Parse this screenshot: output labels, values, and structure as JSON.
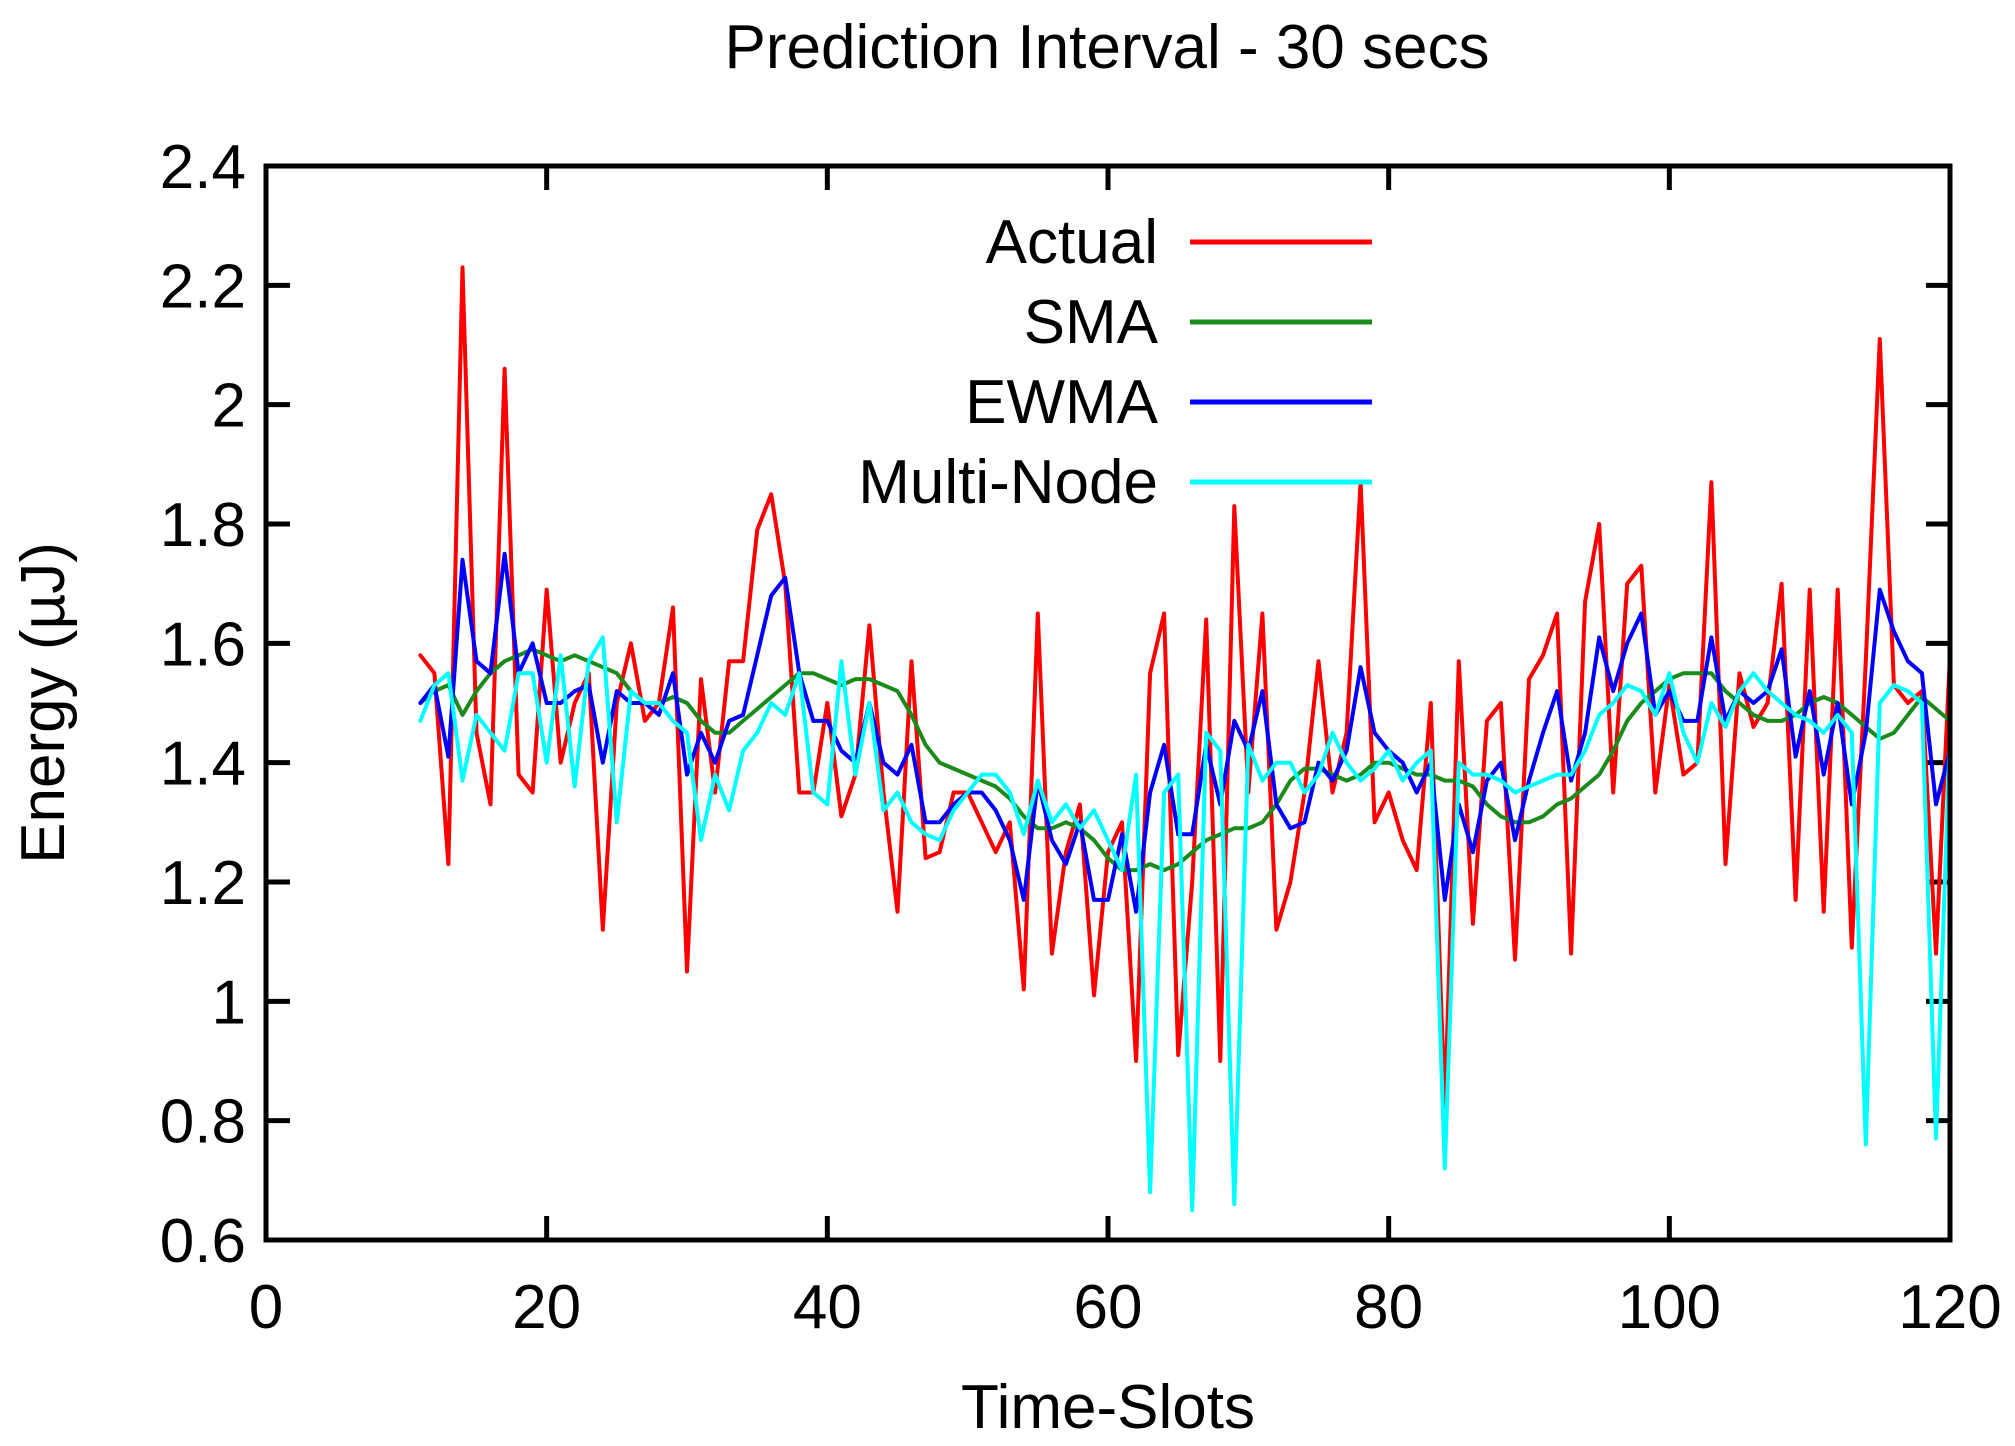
{
  "chart_data": {
    "type": "line",
    "title": "Prediction Interval - 30 secs",
    "xlabel": "Time-Slots",
    "ylabel": "Energy (µJ)",
    "xlim": [
      0,
      120
    ],
    "ylim": [
      0.6,
      2.4
    ],
    "x_ticks": [
      0,
      20,
      40,
      60,
      80,
      100,
      120
    ],
    "y_ticks": [
      0.6,
      0.8,
      1,
      1.2,
      1.4,
      1.6,
      1.8,
      2,
      2.2,
      2.4
    ],
    "y_tick_labels": [
      "0.6",
      "0.8",
      "1",
      "1.2",
      "1.4",
      "1.6",
      "1.8",
      "2",
      "2.2",
      "2.4"
    ],
    "legend_position": "top-center",
    "x": [
      11,
      12,
      13,
      14,
      15,
      16,
      17,
      18,
      19,
      20,
      21,
      22,
      23,
      24,
      25,
      26,
      27,
      28,
      29,
      30,
      31,
      32,
      33,
      34,
      35,
      36,
      37,
      38,
      39,
      40,
      41,
      42,
      43,
      44,
      45,
      46,
      47,
      48,
      49,
      50,
      51,
      52,
      53,
      54,
      55,
      56,
      57,
      58,
      59,
      60,
      61,
      62,
      63,
      64,
      65,
      66,
      67,
      68,
      69,
      70,
      71,
      72,
      73,
      74,
      75,
      76,
      77,
      78,
      79,
      80,
      81,
      82,
      83,
      84,
      85,
      86,
      87,
      88,
      89,
      90,
      91,
      92,
      93,
      94,
      95,
      96,
      97,
      98,
      99,
      100,
      101,
      102,
      103,
      104,
      105,
      106,
      107,
      108,
      109,
      110,
      111,
      112,
      113,
      114,
      115,
      116,
      117,
      118,
      119,
      120
    ],
    "series": [
      {
        "name": "Actual",
        "color": "#ff0000",
        "values": [
          1.58,
          1.55,
          1.23,
          2.23,
          1.45,
          1.33,
          2.06,
          1.38,
          1.35,
          1.69,
          1.4,
          1.5,
          1.55,
          1.12,
          1.5,
          1.6,
          1.47,
          1.5,
          1.66,
          1.05,
          1.54,
          1.35,
          1.57,
          1.57,
          1.79,
          1.85,
          1.7,
          1.35,
          1.35,
          1.5,
          1.31,
          1.38,
          1.63,
          1.35,
          1.15,
          1.57,
          1.24,
          1.25,
          1.35,
          1.35,
          1.3,
          1.25,
          1.3,
          1.02,
          1.65,
          1.08,
          1.25,
          1.33,
          1.01,
          1.25,
          1.3,
          0.9,
          1.55,
          1.65,
          0.91,
          1.2,
          1.64,
          0.9,
          1.83,
          1.35,
          1.65,
          1.12,
          1.2,
          1.35,
          1.57,
          1.35,
          1.45,
          1.87,
          1.3,
          1.35,
          1.27,
          1.22,
          1.5,
          0.82,
          1.57,
          1.13,
          1.47,
          1.5,
          1.07,
          1.54,
          1.58,
          1.65,
          1.08,
          1.67,
          1.8,
          1.35,
          1.7,
          1.73,
          1.35,
          1.53,
          1.38,
          1.4,
          1.87,
          1.23,
          1.55,
          1.46,
          1.5,
          1.7,
          1.17,
          1.69,
          1.15,
          1.69,
          1.09,
          1.57,
          2.11,
          1.53,
          1.5,
          1.52,
          1.08,
          1.58
        ]
      },
      {
        "name": "SMA",
        "color": "#1a8a1a",
        "values": [
          1.5,
          1.52,
          1.53,
          1.48,
          1.52,
          1.55,
          1.57,
          1.58,
          1.59,
          1.58,
          1.57,
          1.58,
          1.57,
          1.56,
          1.55,
          1.52,
          1.5,
          1.5,
          1.51,
          1.5,
          1.47,
          1.45,
          1.45,
          1.47,
          1.49,
          1.51,
          1.53,
          1.55,
          1.55,
          1.54,
          1.53,
          1.54,
          1.54,
          1.53,
          1.52,
          1.48,
          1.43,
          1.4,
          1.39,
          1.38,
          1.37,
          1.36,
          1.34,
          1.31,
          1.29,
          1.29,
          1.3,
          1.29,
          1.27,
          1.24,
          1.22,
          1.22,
          1.23,
          1.22,
          1.23,
          1.25,
          1.27,
          1.28,
          1.29,
          1.29,
          1.3,
          1.33,
          1.37,
          1.39,
          1.39,
          1.38,
          1.37,
          1.38,
          1.4,
          1.4,
          1.39,
          1.38,
          1.38,
          1.37,
          1.37,
          1.36,
          1.33,
          1.31,
          1.3,
          1.3,
          1.31,
          1.33,
          1.34,
          1.36,
          1.38,
          1.42,
          1.47,
          1.5,
          1.52,
          1.54,
          1.55,
          1.55,
          1.55,
          1.52,
          1.5,
          1.48,
          1.47,
          1.47,
          1.48,
          1.5,
          1.51,
          1.5,
          1.48,
          1.46,
          1.44,
          1.45,
          1.48,
          1.51,
          1.49,
          1.47
        ]
      },
      {
        "name": "EWMA",
        "color": "#0000ff",
        "values": [
          1.5,
          1.53,
          1.41,
          1.74,
          1.57,
          1.55,
          1.75,
          1.55,
          1.6,
          1.5,
          1.5,
          1.52,
          1.53,
          1.4,
          1.52,
          1.5,
          1.5,
          1.48,
          1.55,
          1.38,
          1.45,
          1.4,
          1.47,
          1.48,
          1.58,
          1.68,
          1.71,
          1.55,
          1.47,
          1.47,
          1.42,
          1.4,
          1.5,
          1.4,
          1.38,
          1.43,
          1.3,
          1.3,
          1.33,
          1.35,
          1.35,
          1.32,
          1.27,
          1.17,
          1.37,
          1.27,
          1.23,
          1.3,
          1.17,
          1.17,
          1.28,
          1.15,
          1.35,
          1.43,
          1.28,
          1.28,
          1.43,
          1.33,
          1.47,
          1.42,
          1.52,
          1.33,
          1.29,
          1.3,
          1.4,
          1.37,
          1.42,
          1.56,
          1.45,
          1.42,
          1.4,
          1.35,
          1.4,
          1.17,
          1.33,
          1.25,
          1.37,
          1.4,
          1.27,
          1.37,
          1.45,
          1.52,
          1.37,
          1.45,
          1.61,
          1.52,
          1.6,
          1.65,
          1.48,
          1.52,
          1.47,
          1.47,
          1.61,
          1.47,
          1.52,
          1.5,
          1.52,
          1.59,
          1.41,
          1.52,
          1.38,
          1.5,
          1.33,
          1.45,
          1.69,
          1.62,
          1.57,
          1.55,
          1.33,
          1.42
        ]
      },
      {
        "name": "Multi-Node",
        "color": "#00ffff",
        "values": [
          1.47,
          1.53,
          1.55,
          1.37,
          1.48,
          1.45,
          1.42,
          1.55,
          1.55,
          1.4,
          1.58,
          1.36,
          1.57,
          1.61,
          1.3,
          1.52,
          1.5,
          1.5,
          1.47,
          1.45,
          1.27,
          1.38,
          1.32,
          1.42,
          1.45,
          1.5,
          1.48,
          1.55,
          1.35,
          1.33,
          1.57,
          1.38,
          1.5,
          1.32,
          1.35,
          1.3,
          1.28,
          1.27,
          1.32,
          1.35,
          1.38,
          1.38,
          1.35,
          1.28,
          1.37,
          1.3,
          1.33,
          1.29,
          1.32,
          1.27,
          1.22,
          1.38,
          0.68,
          1.35,
          1.38,
          0.65,
          1.45,
          1.42,
          0.66,
          1.43,
          1.37,
          1.4,
          1.4,
          1.35,
          1.38,
          1.45,
          1.4,
          1.37,
          1.39,
          1.42,
          1.37,
          1.4,
          1.42,
          0.72,
          1.4,
          1.38,
          1.38,
          1.37,
          1.35,
          1.36,
          1.37,
          1.38,
          1.38,
          1.42,
          1.48,
          1.5,
          1.53,
          1.52,
          1.48,
          1.55,
          1.45,
          1.4,
          1.5,
          1.46,
          1.52,
          1.55,
          1.52,
          1.5,
          1.48,
          1.47,
          1.45,
          1.48,
          1.45,
          0.76,
          1.5,
          1.53,
          1.52,
          1.5,
          0.77,
          1.45
        ]
      }
    ]
  }
}
